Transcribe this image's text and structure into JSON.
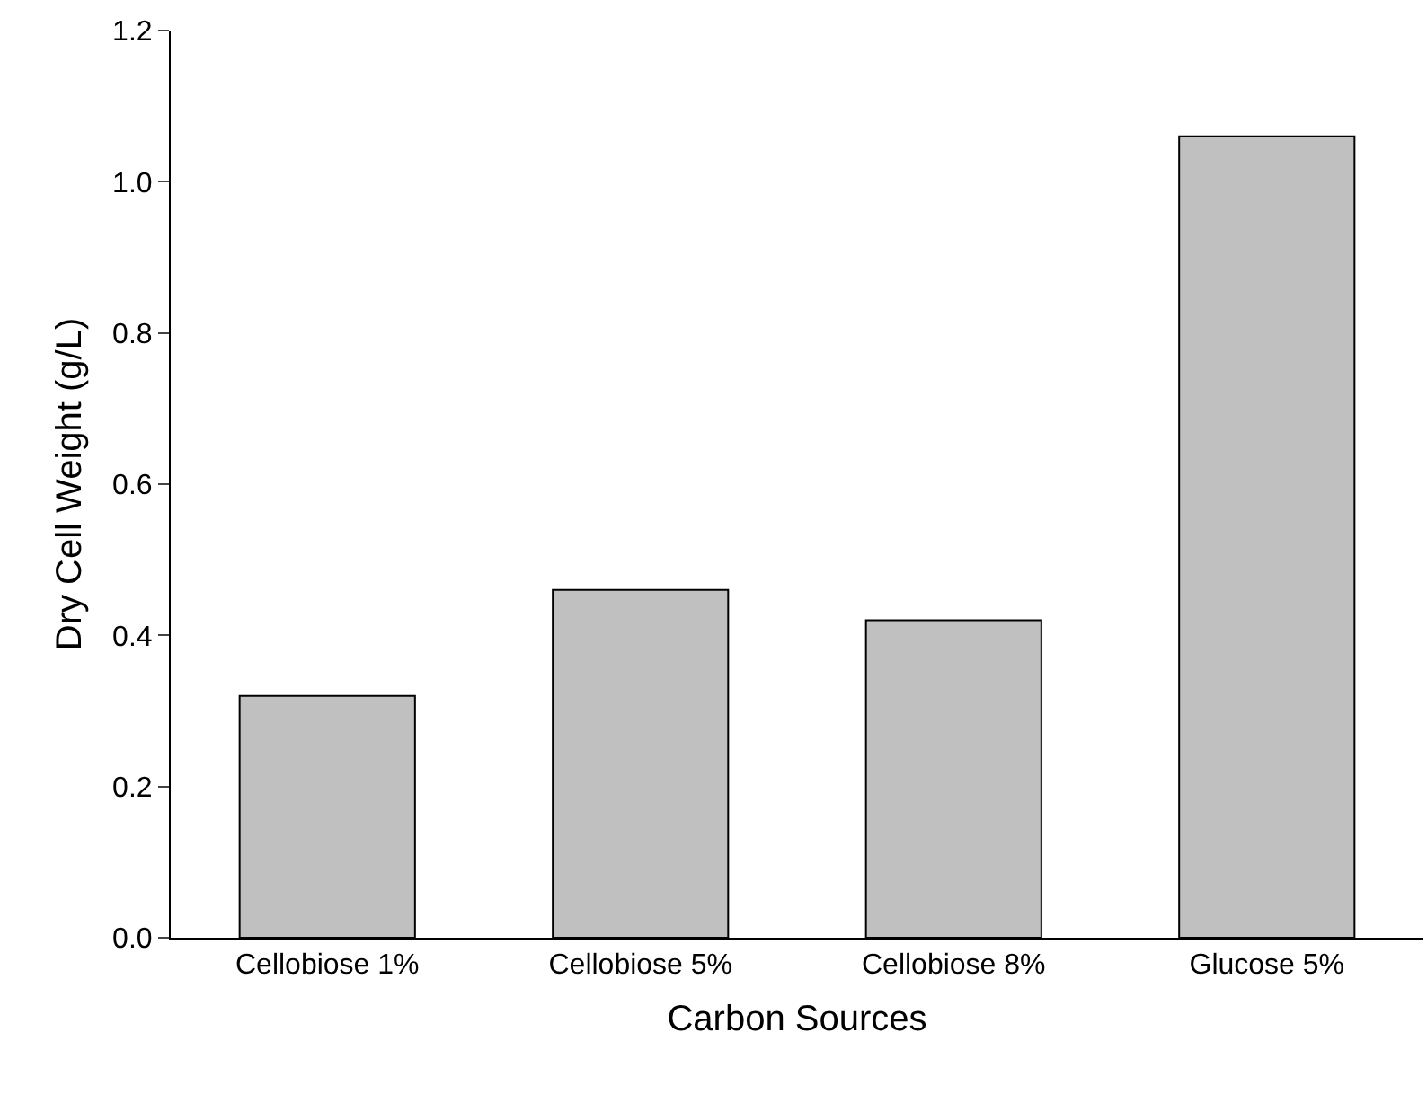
{
  "chart_data": {
    "type": "bar",
    "xlabel": "Carbon Sources",
    "ylabel": "Dry Cell Weight (g/L)",
    "categories": [
      "Cellobiose 1%",
      "Cellobiose 5%",
      "Cellobiose 8%",
      "Glucose 5%"
    ],
    "values": [
      0.32,
      0.46,
      0.42,
      1.06
    ],
    "color": "#c0c0c0",
    "ylim": [
      0,
      1.2
    ],
    "yticks": [
      {
        "value": 0,
        "label": "0.0"
      },
      {
        "value": 0.2,
        "label": "0.2"
      },
      {
        "value": 0.4,
        "label": "0.4"
      },
      {
        "value": 0.6,
        "label": "0.6"
      },
      {
        "value": 0.8,
        "label": "0.8"
      },
      {
        "value": 1,
        "label": "1.0"
      },
      {
        "value": 1.2,
        "label": "1.2"
      }
    ],
    "grid": false
  }
}
